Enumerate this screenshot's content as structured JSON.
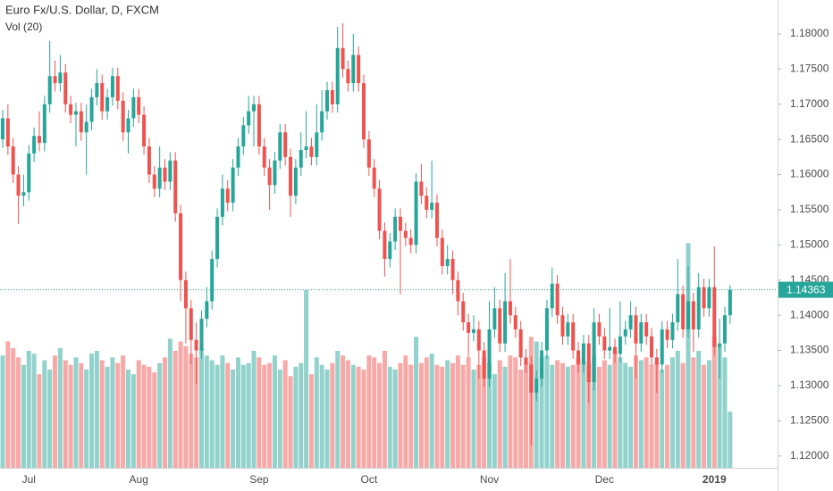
{
  "chart_data": {
    "type": "candlestick",
    "title": "Euro Fx/U.S. Dollar, D, FXCM",
    "subtitle": "Vol (20)",
    "up_color": "#26a69a",
    "down_color": "#ef5350",
    "categories": [
      null,
      null,
      null,
      null,
      null,
      "Jul",
      null,
      null,
      null,
      null,
      null,
      null,
      null,
      null,
      null,
      null,
      null,
      null,
      null,
      null,
      null,
      null,
      null,
      null,
      null,
      null,
      "Aug",
      null,
      null,
      null,
      null,
      null,
      null,
      null,
      null,
      null,
      null,
      null,
      null,
      null,
      null,
      null,
      null,
      null,
      null,
      null,
      null,
      null,
      null,
      "Sep",
      null,
      null,
      null,
      null,
      null,
      null,
      null,
      null,
      null,
      null,
      null,
      null,
      null,
      null,
      null,
      null,
      null,
      null,
      null,
      null,
      "Oct",
      null,
      null,
      null,
      null,
      null,
      null,
      null,
      null,
      null,
      null,
      null,
      null,
      null,
      null,
      null,
      null,
      null,
      null,
      null,
      null,
      null,
      null,
      "Nov",
      null,
      null,
      null,
      null,
      null,
      null,
      null,
      null,
      null,
      null,
      null,
      null,
      null,
      null,
      null,
      null,
      null,
      null,
      null,
      null,
      null,
      "Dec",
      null,
      null,
      null,
      null,
      null,
      null,
      null,
      null,
      null,
      null,
      null,
      null,
      null,
      null,
      null,
      null,
      null,
      null,
      null,
      null,
      "2019",
      null,
      null,
      null
    ],
    "open": [
      1.165,
      1.168,
      1.164,
      1.16,
      1.157,
      1.1575,
      1.163,
      1.1655,
      1.1645,
      1.17,
      1.174,
      1.173,
      1.1745,
      1.17,
      1.1685,
      1.169,
      1.166,
      1.1675,
      1.171,
      1.173,
      1.169,
      1.171,
      1.174,
      1.1705,
      1.166,
      1.168,
      1.171,
      1.1685,
      1.164,
      1.16,
      1.158,
      1.161,
      1.159,
      1.162,
      1.1545,
      1.145,
      1.141,
      1.1365,
      1.135,
      1.1395,
      1.142,
      1.148,
      1.154,
      1.158,
      1.156,
      1.161,
      1.164,
      1.167,
      1.169,
      1.17,
      1.164,
      1.161,
      1.1585,
      1.162,
      1.166,
      1.1625,
      1.157,
      1.161,
      1.1635,
      1.164,
      1.1625,
      1.166,
      1.169,
      1.172,
      1.17,
      1.178,
      1.175,
      1.173,
      1.177,
      1.173,
      1.165,
      1.161,
      1.158,
      1.152,
      1.148,
      1.1505,
      1.154,
      1.152,
      1.151,
      1.15,
      1.159,
      1.157,
      1.155,
      1.156,
      1.151,
      1.147,
      1.148,
      1.145,
      1.142,
      1.139,
      1.1375,
      1.138,
      1.135,
      1.131,
      1.138,
      1.141,
      1.136,
      1.142,
      1.14,
      1.138,
      1.134,
      1.133,
      1.129,
      1.131,
      1.135,
      1.141,
      1.1445,
      1.14,
      1.137,
      1.139,
      1.135,
      1.133,
      1.136,
      1.1305,
      1.139,
      1.137,
      1.135,
      1.1355,
      1.1345,
      1.137,
      1.138,
      1.14,
      1.136,
      1.139,
      1.137,
      1.134,
      1.133,
      1.138,
      1.1365,
      1.139,
      1.143,
      1.138,
      1.142,
      1.138,
      1.144,
      1.141,
      1.144,
      1.1355,
      1.136,
      1.14
    ],
    "high": [
      1.1692,
      1.17,
      1.1652,
      1.1612,
      1.16,
      1.1642,
      1.1667,
      1.169,
      1.1712,
      1.179,
      1.1762,
      1.177,
      1.1757,
      1.1712,
      1.1702,
      1.1702,
      1.17,
      1.1722,
      1.175,
      1.1742,
      1.1722,
      1.1752,
      1.1752,
      1.1717,
      1.1692,
      1.1722,
      1.1722,
      1.1697,
      1.1652,
      1.1612,
      1.164,
      1.1622,
      1.1632,
      1.1632,
      1.1557,
      1.1462,
      1.1422,
      1.139,
      1.1407,
      1.144,
      1.1492,
      1.1552,
      1.16,
      1.1592,
      1.1622,
      1.1652,
      1.1682,
      1.1712,
      1.1712,
      1.1712,
      1.1652,
      1.1622,
      1.1632,
      1.1672,
      1.1672,
      1.1637,
      1.1622,
      1.166,
      1.169,
      1.1652,
      1.17,
      1.172,
      1.1732,
      1.1732,
      1.181,
      1.1815,
      1.1762,
      1.18,
      1.1782,
      1.1742,
      1.1662,
      1.1622,
      1.1592,
      1.1532,
      1.1517,
      1.1552,
      1.1552,
      1.1532,
      1.1522,
      1.1602,
      1.1615,
      1.1582,
      1.162,
      1.1572,
      1.1522,
      1.15,
      1.1492,
      1.1462,
      1.1432,
      1.1402,
      1.14,
      1.1392,
      1.1362,
      1.142,
      1.144,
      1.1422,
      1.146,
      1.148,
      1.1412,
      1.1392,
      1.1352,
      1.1342,
      1.1322,
      1.1362,
      1.1422,
      1.1468,
      1.1457,
      1.1412,
      1.1402,
      1.1402,
      1.1362,
      1.1372,
      1.1372,
      1.141,
      1.1402,
      1.1382,
      1.141,
      1.1367,
      1.142,
      1.1392,
      1.142,
      1.1412,
      1.1402,
      1.1402,
      1.1382,
      1.1352,
      1.1392,
      1.1392,
      1.1402,
      1.148,
      1.1442,
      1.147,
      1.1432,
      1.146,
      1.1452,
      1.1452,
      1.1498,
      1.1395,
      1.1412,
      1.1443
    ],
    "low": [
      1.1638,
      1.1628,
      1.1588,
      1.153,
      1.1555,
      1.1563,
      1.1618,
      1.1633,
      1.1633,
      1.1688,
      1.1718,
      1.1718,
      1.1688,
      1.1673,
      1.164,
      1.1648,
      1.16,
      1.1663,
      1.1698,
      1.1678,
      1.1678,
      1.1698,
      1.1693,
      1.1648,
      1.163,
      1.1668,
      1.1673,
      1.1628,
      1.1588,
      1.1568,
      1.1568,
      1.1578,
      1.1578,
      1.1533,
      1.142,
      1.136,
      1.133,
      1.1302,
      1.1338,
      1.1383,
      1.1408,
      1.1468,
      1.1528,
      1.1548,
      1.1548,
      1.1598,
      1.1628,
      1.1658,
      1.164,
      1.1628,
      1.1598,
      1.155,
      1.1573,
      1.1608,
      1.1613,
      1.154,
      1.1558,
      1.1598,
      1.1623,
      1.1613,
      1.1613,
      1.1648,
      1.1678,
      1.1688,
      1.1688,
      1.1738,
      1.1718,
      1.1718,
      1.1718,
      1.1638,
      1.1598,
      1.1568,
      1.1508,
      1.1455,
      1.1468,
      1.1493,
      1.143,
      1.1498,
      1.1488,
      1.1488,
      1.1558,
      1.1538,
      1.1538,
      1.1498,
      1.1458,
      1.1458,
      1.143,
      1.14,
      1.1378,
      1.134,
      1.1363,
      1.131,
      1.1298,
      1.1298,
      1.1368,
      1.1348,
      1.1348,
      1.1388,
      1.1368,
      1.1328,
      1.1318,
      1.1215,
      1.1278,
      1.1298,
      1.1338,
      1.1398,
      1.1388,
      1.1358,
      1.1358,
      1.1338,
      1.1318,
      1.1318,
      1.1275,
      1.1293,
      1.1358,
      1.1338,
      1.1338,
      1.1333,
      1.1333,
      1.1358,
      1.1368,
      1.131,
      1.1348,
      1.1358,
      1.1328,
      1.129,
      1.1318,
      1.1353,
      1.1353,
      1.1378,
      1.1368,
      1.1368,
      1.1348,
      1.1368,
      1.1398,
      1.1398,
      1.1343,
      1.131,
      1.1348,
      1.1388
    ],
    "close": [
      1.168,
      1.164,
      1.16,
      1.157,
      1.1575,
      1.163,
      1.1655,
      1.1645,
      1.17,
      1.174,
      1.173,
      1.1745,
      1.17,
      1.1685,
      1.169,
      1.166,
      1.1675,
      1.171,
      1.173,
      1.169,
      1.171,
      1.174,
      1.1705,
      1.166,
      1.168,
      1.171,
      1.1685,
      1.164,
      1.16,
      1.158,
      1.161,
      1.159,
      1.162,
      1.1545,
      1.145,
      1.141,
      1.1365,
      1.135,
      1.1395,
      1.142,
      1.148,
      1.154,
      1.158,
      1.156,
      1.161,
      1.164,
      1.167,
      1.169,
      1.17,
      1.164,
      1.161,
      1.1585,
      1.162,
      1.166,
      1.1625,
      1.157,
      1.161,
      1.1635,
      1.164,
      1.1625,
      1.166,
      1.169,
      1.172,
      1.17,
      1.178,
      1.175,
      1.173,
      1.177,
      1.173,
      1.165,
      1.161,
      1.158,
      1.152,
      1.148,
      1.1505,
      1.154,
      1.152,
      1.151,
      1.15,
      1.159,
      1.157,
      1.155,
      1.156,
      1.151,
      1.147,
      1.148,
      1.145,
      1.142,
      1.139,
      1.1375,
      1.138,
      1.135,
      1.131,
      1.138,
      1.141,
      1.136,
      1.142,
      1.14,
      1.138,
      1.134,
      1.133,
      1.129,
      1.131,
      1.135,
      1.141,
      1.1445,
      1.14,
      1.137,
      1.139,
      1.135,
      1.133,
      1.136,
      1.1305,
      1.139,
      1.137,
      1.135,
      1.1355,
      1.1345,
      1.137,
      1.138,
      1.14,
      1.136,
      1.139,
      1.137,
      1.134,
      1.133,
      1.138,
      1.1365,
      1.139,
      1.143,
      1.138,
      1.142,
      1.138,
      1.144,
      1.141,
      1.144,
      1.1355,
      1.136,
      1.14,
      1.14363
    ],
    "volume": [
      120,
      135,
      128,
      118,
      110,
      125,
      122,
      100,
      115,
      105,
      120,
      128,
      115,
      110,
      118,
      112,
      105,
      122,
      125,
      115,
      108,
      118,
      112,
      120,
      105,
      100,
      115,
      110,
      108,
      102,
      112,
      118,
      138,
      125,
      135,
      130,
      122,
      118,
      128,
      120,
      115,
      110,
      120,
      112,
      105,
      118,
      110,
      112,
      125,
      118,
      110,
      112,
      120,
      105,
      115,
      98,
      108,
      112,
      190,
      100,
      118,
      110,
      105,
      112,
      125,
      120,
      115,
      110,
      108,
      105,
      120,
      118,
      112,
      125,
      108,
      105,
      112,
      120,
      110,
      140,
      112,
      118,
      122,
      110,
      108,
      115,
      112,
      120,
      110,
      118,
      105,
      110,
      118,
      112,
      100,
      115,
      108,
      120,
      118,
      105,
      112,
      140,
      135,
      118,
      120,
      110,
      115,
      112,
      108,
      110,
      118,
      115,
      112,
      120,
      108,
      115,
      110,
      125,
      118,
      112,
      108,
      120,
      115,
      118,
      110,
      112,
      105,
      110,
      118,
      125,
      112,
      240,
      118,
      125,
      110,
      115,
      140,
      130,
      118,
      60
    ],
    "ylim": [
      1.11832,
      1.18482
    ],
    "yticks": [
      {
        "value": 1.12,
        "label": "1.12000"
      },
      {
        "value": 1.125,
        "label": "1.12500"
      },
      {
        "value": 1.13,
        "label": "1.13000"
      },
      {
        "value": 1.135,
        "label": "1.13500"
      },
      {
        "value": 1.14,
        "label": "1.14000"
      },
      {
        "value": 1.145,
        "label": "1.14500"
      },
      {
        "value": 1.15,
        "label": "1.15000"
      },
      {
        "value": 1.155,
        "label": "1.15500"
      },
      {
        "value": 1.16,
        "label": "1.16000"
      },
      {
        "value": 1.165,
        "label": "1.16500"
      },
      {
        "value": 1.17,
        "label": "1.17000"
      },
      {
        "value": 1.175,
        "label": "1.17500"
      },
      {
        "value": 1.18,
        "label": "1.18000"
      }
    ],
    "y2lim": [
      0,
      500
    ],
    "grid": false
  }
}
